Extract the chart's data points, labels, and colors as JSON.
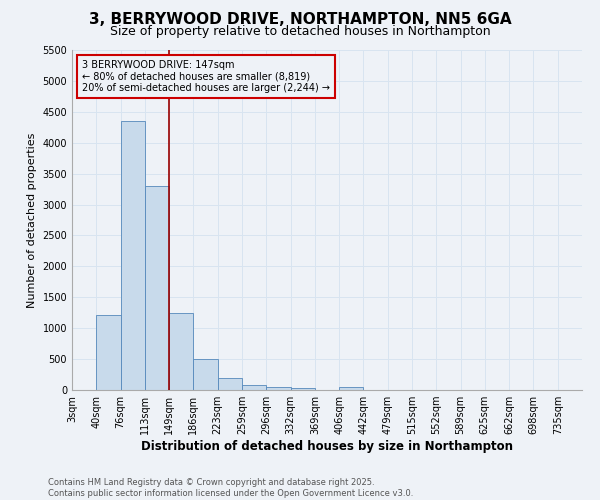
{
  "title": "3, BERRYWOOD DRIVE, NORTHAMPTON, NN5 6GA",
  "subtitle": "Size of property relative to detached houses in Northampton",
  "xlabel": "Distribution of detached houses by size in Northampton",
  "ylabel": "Number of detached properties",
  "bar_color": "#c8daeb",
  "bar_edgecolor": "#5588bb",
  "bin_labels": [
    "3sqm",
    "40sqm",
    "76sqm",
    "113sqm",
    "149sqm",
    "186sqm",
    "223sqm",
    "259sqm",
    "296sqm",
    "332sqm",
    "369sqm",
    "406sqm",
    "442sqm",
    "479sqm",
    "515sqm",
    "552sqm",
    "589sqm",
    "625sqm",
    "662sqm",
    "698sqm",
    "735sqm"
  ],
  "bar_values": [
    0,
    1220,
    4350,
    3300,
    1250,
    500,
    200,
    80,
    55,
    40,
    0,
    50,
    0,
    0,
    0,
    0,
    0,
    0,
    0,
    0,
    0
  ],
  "vline_bin_index": 4,
  "vline_color": "#990000",
  "annotation_text": "3 BERRYWOOD DRIVE: 147sqm\n← 80% of detached houses are smaller (8,819)\n20% of semi-detached houses are larger (2,244) →",
  "annotation_box_edgecolor": "#cc0000",
  "ylim": [
    0,
    5500
  ],
  "yticks": [
    0,
    500,
    1000,
    1500,
    2000,
    2500,
    3000,
    3500,
    4000,
    4500,
    5000,
    5500
  ],
  "footnote": "Contains HM Land Registry data © Crown copyright and database right 2025.\nContains public sector information licensed under the Open Government Licence v3.0.",
  "bg_color": "#eef2f7",
  "grid_color": "#d8e4f0",
  "title_fontsize": 11,
  "subtitle_fontsize": 9,
  "axis_label_fontsize": 8,
  "tick_fontsize": 7,
  "annotation_fontsize": 7,
  "footnote_fontsize": 6
}
